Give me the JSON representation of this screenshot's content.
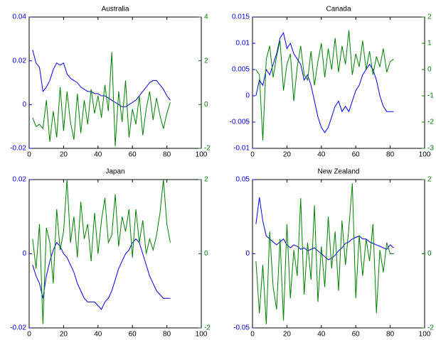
{
  "chart_data": [
    {
      "type": "line",
      "title": "Australia",
      "x": [
        2,
        4,
        6,
        8,
        10,
        12,
        14,
        16,
        18,
        20,
        22,
        24,
        26,
        28,
        30,
        32,
        34,
        36,
        38,
        40,
        42,
        44,
        46,
        48,
        50,
        52,
        54,
        56,
        58,
        60,
        62,
        64,
        66,
        68,
        70,
        72,
        74,
        76,
        78,
        80,
        82
      ],
      "series": [
        {
          "color": "#0000ff",
          "values": [
            0.025,
            0.019,
            0.017,
            0.006,
            0.008,
            0.011,
            0.016,
            0.019,
            0.018,
            0.019,
            0.014,
            0.012,
            0.011,
            0.01,
            0.008,
            0.007,
            0.006,
            0.006,
            0.005,
            0.005,
            0.004,
            0.004,
            0.003,
            0.002,
            0.001,
            0.0,
            -0.001,
            -0.001,
            0.0,
            0.001,
            0.002,
            0.004,
            0.006,
            0.008,
            0.01,
            0.011,
            0.011,
            0.009,
            0.007,
            0.004,
            0.002
          ]
        },
        {
          "color": "#008000",
          "axis": "y2",
          "values": [
            -0.6,
            -1.0,
            -0.9,
            -1.1,
            0.2,
            -1.7,
            -0.3,
            -1.5,
            0.8,
            -1.2,
            0.6,
            -0.8,
            -1.6,
            0.5,
            -1.3,
            0.2,
            -0.9,
            0.7,
            -0.4,
            0.4,
            -0.6,
            0.9,
            -0.3,
            2.4,
            -1.9,
            0.6,
            -0.8,
            1.1,
            -1.5,
            -0.2,
            -0.9,
            0.4,
            -1.4,
            -0.2,
            0.6,
            -0.7,
            0.3,
            -0.5,
            -1.1,
            -0.4,
            0.1
          ]
        }
      ],
      "xlim": [
        0,
        100
      ],
      "xticks": [
        0,
        20,
        40,
        60,
        80,
        100
      ],
      "ylim": [
        -0.02,
        0.04
      ],
      "yticks": [
        -0.02,
        0,
        0.02,
        0.04
      ],
      "y2lim": [
        -2,
        4
      ],
      "y2ticks": [
        -2,
        0,
        2,
        4
      ]
    },
    {
      "type": "line",
      "title": "Canada",
      "x": [
        2,
        4,
        6,
        8,
        10,
        12,
        14,
        16,
        18,
        20,
        22,
        24,
        26,
        28,
        30,
        32,
        34,
        36,
        38,
        40,
        42,
        44,
        46,
        48,
        50,
        52,
        54,
        56,
        58,
        60,
        62,
        64,
        66,
        68,
        70,
        72,
        74,
        76,
        78,
        80,
        82
      ],
      "series": [
        {
          "color": "#0000ff",
          "values": [
            0.0,
            0.003,
            0.002,
            0.005,
            0.004,
            0.006,
            0.008,
            0.011,
            0.012,
            0.009,
            0.01,
            0.008,
            0.007,
            0.006,
            0.003,
            0.004,
            0.002,
            -0.001,
            -0.004,
            -0.006,
            -0.007,
            -0.006,
            -0.004,
            -0.002,
            -0.001,
            -0.003,
            -0.002,
            -0.003,
            -0.001,
            0.001,
            0.002,
            0.004,
            0.005,
            0.006,
            0.005,
            0.003,
            0.0,
            -0.002,
            -0.003,
            -0.003,
            -0.003
          ]
        },
        {
          "color": "#008000",
          "axis": "y2",
          "values": [
            0.0,
            -0.2,
            -2.7,
            0.4,
            0.9,
            -0.3,
            0.5,
            1.1,
            -0.8,
            0.2,
            0.6,
            -1.2,
            0.1,
            0.9,
            -0.2,
            -0.4,
            0.7,
            -0.6,
            0.3,
            1.0,
            -0.3,
            0.8,
            0.0,
            1.2,
            -0.1,
            0.9,
            0.2,
            1.5,
            -0.2,
            0.6,
            0.1,
            1.1,
            0.0,
            0.7,
            -0.2,
            0.5,
            0.1,
            0.8,
            -0.1,
            0.3,
            0.4
          ]
        }
      ],
      "xlim": [
        0,
        100
      ],
      "xticks": [
        0,
        20,
        40,
        60,
        80,
        100
      ],
      "ylim": [
        -0.01,
        0.015
      ],
      "yticks": [
        -0.01,
        -0.005,
        0,
        0.005,
        0.01,
        0.015
      ],
      "y2lim": [
        -3,
        2
      ],
      "y2ticks": [
        -3,
        -2,
        -1,
        0,
        1,
        2
      ]
    },
    {
      "type": "line",
      "title": "Japan",
      "x": [
        2,
        4,
        6,
        8,
        10,
        12,
        14,
        16,
        18,
        20,
        22,
        24,
        26,
        28,
        30,
        32,
        34,
        36,
        38,
        40,
        42,
        44,
        46,
        48,
        50,
        52,
        54,
        56,
        58,
        60,
        62,
        64,
        66,
        68,
        70,
        72,
        74,
        76,
        78,
        80,
        82
      ],
      "series": [
        {
          "color": "#0000ff",
          "values": [
            -0.003,
            -0.006,
            -0.008,
            -0.012,
            -0.006,
            -0.002,
            0.001,
            0.003,
            0.002,
            0.0,
            -0.001,
            -0.003,
            -0.005,
            -0.008,
            -0.01,
            -0.012,
            -0.013,
            -0.013,
            -0.013,
            -0.014,
            -0.015,
            -0.013,
            -0.012,
            -0.01,
            -0.007,
            -0.004,
            -0.002,
            0.0,
            0.001,
            0.003,
            0.004,
            0.003,
            0.0,
            -0.003,
            -0.006,
            -0.008,
            -0.01,
            -0.011,
            -0.012,
            -0.012,
            -0.012
          ]
        },
        {
          "color": "#008000",
          "axis": "y2",
          "values": [
            0.4,
            -0.4,
            0.8,
            -1.9,
            0.7,
            0.3,
            -0.8,
            1.2,
            0.1,
            0.6,
            2.0,
            0.3,
            1.0,
            -0.1,
            1.4,
            0.4,
            0.8,
            -0.2,
            1.1,
            0.0,
            0.9,
            1.5,
            0.3,
            0.5,
            1.6,
            0.2,
            1.0,
            0.6,
            1.2,
            -0.1,
            1.2,
            0.3,
            0.9,
            0.0,
            0.4,
            0.1,
            0.5,
            1.1,
            2.0,
            0.8,
            0.3
          ]
        }
      ],
      "xlim": [
        0,
        100
      ],
      "xticks": [
        0,
        20,
        40,
        60,
        80,
        100
      ],
      "ylim": [
        -0.02,
        0.02
      ],
      "yticks": [
        -0.02,
        0,
        0.02
      ],
      "y2lim": [
        -2,
        2
      ],
      "y2ticks": [
        -2,
        0,
        2
      ]
    },
    {
      "type": "line",
      "title": "New Zealand",
      "x": [
        2,
        4,
        6,
        8,
        10,
        12,
        14,
        16,
        18,
        20,
        22,
        24,
        26,
        28,
        30,
        32,
        34,
        36,
        38,
        40,
        42,
        44,
        46,
        48,
        50,
        52,
        54,
        56,
        58,
        60,
        62,
        64,
        66,
        68,
        70,
        72,
        74,
        76,
        78,
        80,
        82
      ],
      "series": [
        {
          "color": "#0000ff",
          "values": [
            0.02,
            0.038,
            0.022,
            0.012,
            0.01,
            0.008,
            0.006,
            0.008,
            0.01,
            0.006,
            0.004,
            0.006,
            0.005,
            0.003,
            0.004,
            0.002,
            0.003,
            0.004,
            0.002,
            0.0,
            -0.002,
            -0.004,
            -0.003,
            -0.001,
            0.002,
            0.004,
            0.007,
            0.008,
            0.01,
            0.011,
            0.012,
            0.01,
            0.01,
            0.008,
            0.007,
            0.006,
            0.005,
            0.004,
            0.003,
            0.006,
            0.004
          ]
        },
        {
          "color": "#008000",
          "axis": "y2",
          "values": [
            -0.2,
            -1.6,
            -0.3,
            -1.9,
            0.6,
            -0.9,
            -1.5,
            0.4,
            -1.8,
            0.8,
            -1.2,
            0.1,
            -0.6,
            1.5,
            -1.1,
            0.3,
            -0.7,
            1.3,
            -1.3,
            0.2,
            -0.9,
            1.0,
            -0.4,
            0.6,
            -1.0,
            0.9,
            -0.3,
            0.7,
            1.9,
            -1.2,
            0.5,
            -0.6,
            0.4,
            -0.2,
            0.8,
            -1.6,
            0.1,
            -0.5,
            0.3,
            0.0,
            0.0
          ]
        }
      ],
      "xlim": [
        0,
        100
      ],
      "xticks": [
        0,
        20,
        40,
        60,
        80,
        100
      ],
      "ylim": [
        -0.05,
        0.05
      ],
      "yticks": [
        -0.05,
        0,
        0.05
      ],
      "y2lim": [
        -2,
        2
      ],
      "y2ticks": [
        -2,
        0,
        2
      ]
    }
  ]
}
